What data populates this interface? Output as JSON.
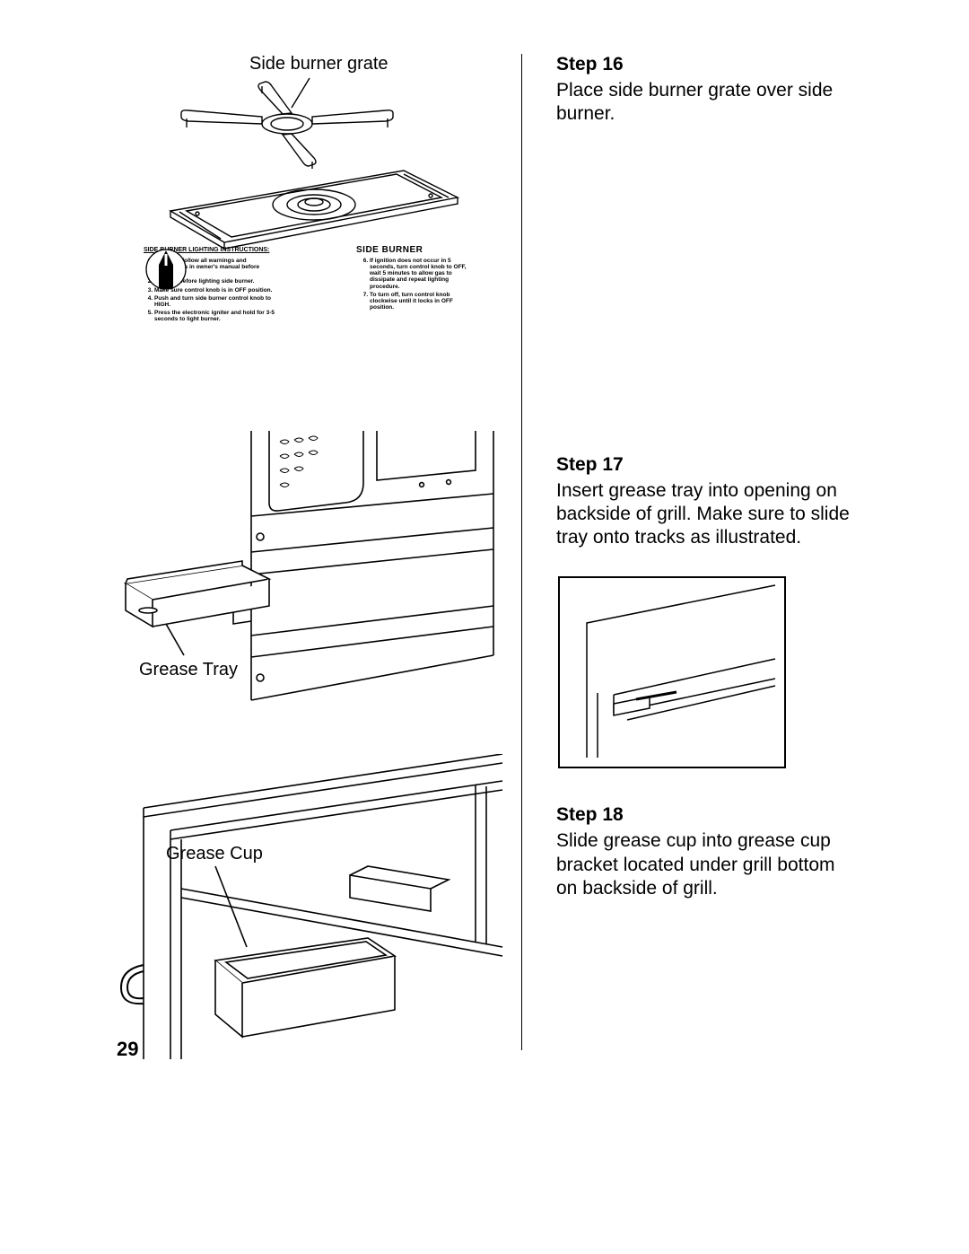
{
  "page_number": "29",
  "figures": {
    "fig1": {
      "label": "Side burner grate",
      "panel_heading": "SIDE BURNER LIGHTING INSTRUCTIONS:",
      "side_burner_text": "SIDE BURNER",
      "left_items": [
        "Read and follow all warnings and instructions in owner's manual before lighting.",
        "Open lid before lighting side burner.",
        "Make sure control knob is in OFF position.",
        "Push and turn side burner control knob to HIGH.",
        "Press the electronic igniter and hold for 3-5 seconds to light burner."
      ],
      "right_items": [
        "If ignition does not occur in 5 seconds, turn control knob to OFF, wait 5 minutes to allow gas to dissipate and repeat lighting procedure.",
        "To turn off, turn control knob clockwise until it locks in OFF position."
      ]
    },
    "fig2": {
      "label": "Grease Tray"
    },
    "fig3": {
      "label": "Grease Cup"
    }
  },
  "steps": {
    "s16": {
      "title": "Step 16",
      "body": "Place side burner grate over side burner."
    },
    "s17": {
      "title": "Step 17",
      "body": "Insert grease tray into opening on backside of grill. Make sure to slide tray onto tracks as illustrated."
    },
    "s18": {
      "title": "Step 18",
      "body": "Slide grease cup into grease cup bracket located under grill bottom on backside of grill."
    }
  },
  "style": {
    "stroke": "#000000",
    "stroke_width": 1.4,
    "background": "#ffffff"
  }
}
